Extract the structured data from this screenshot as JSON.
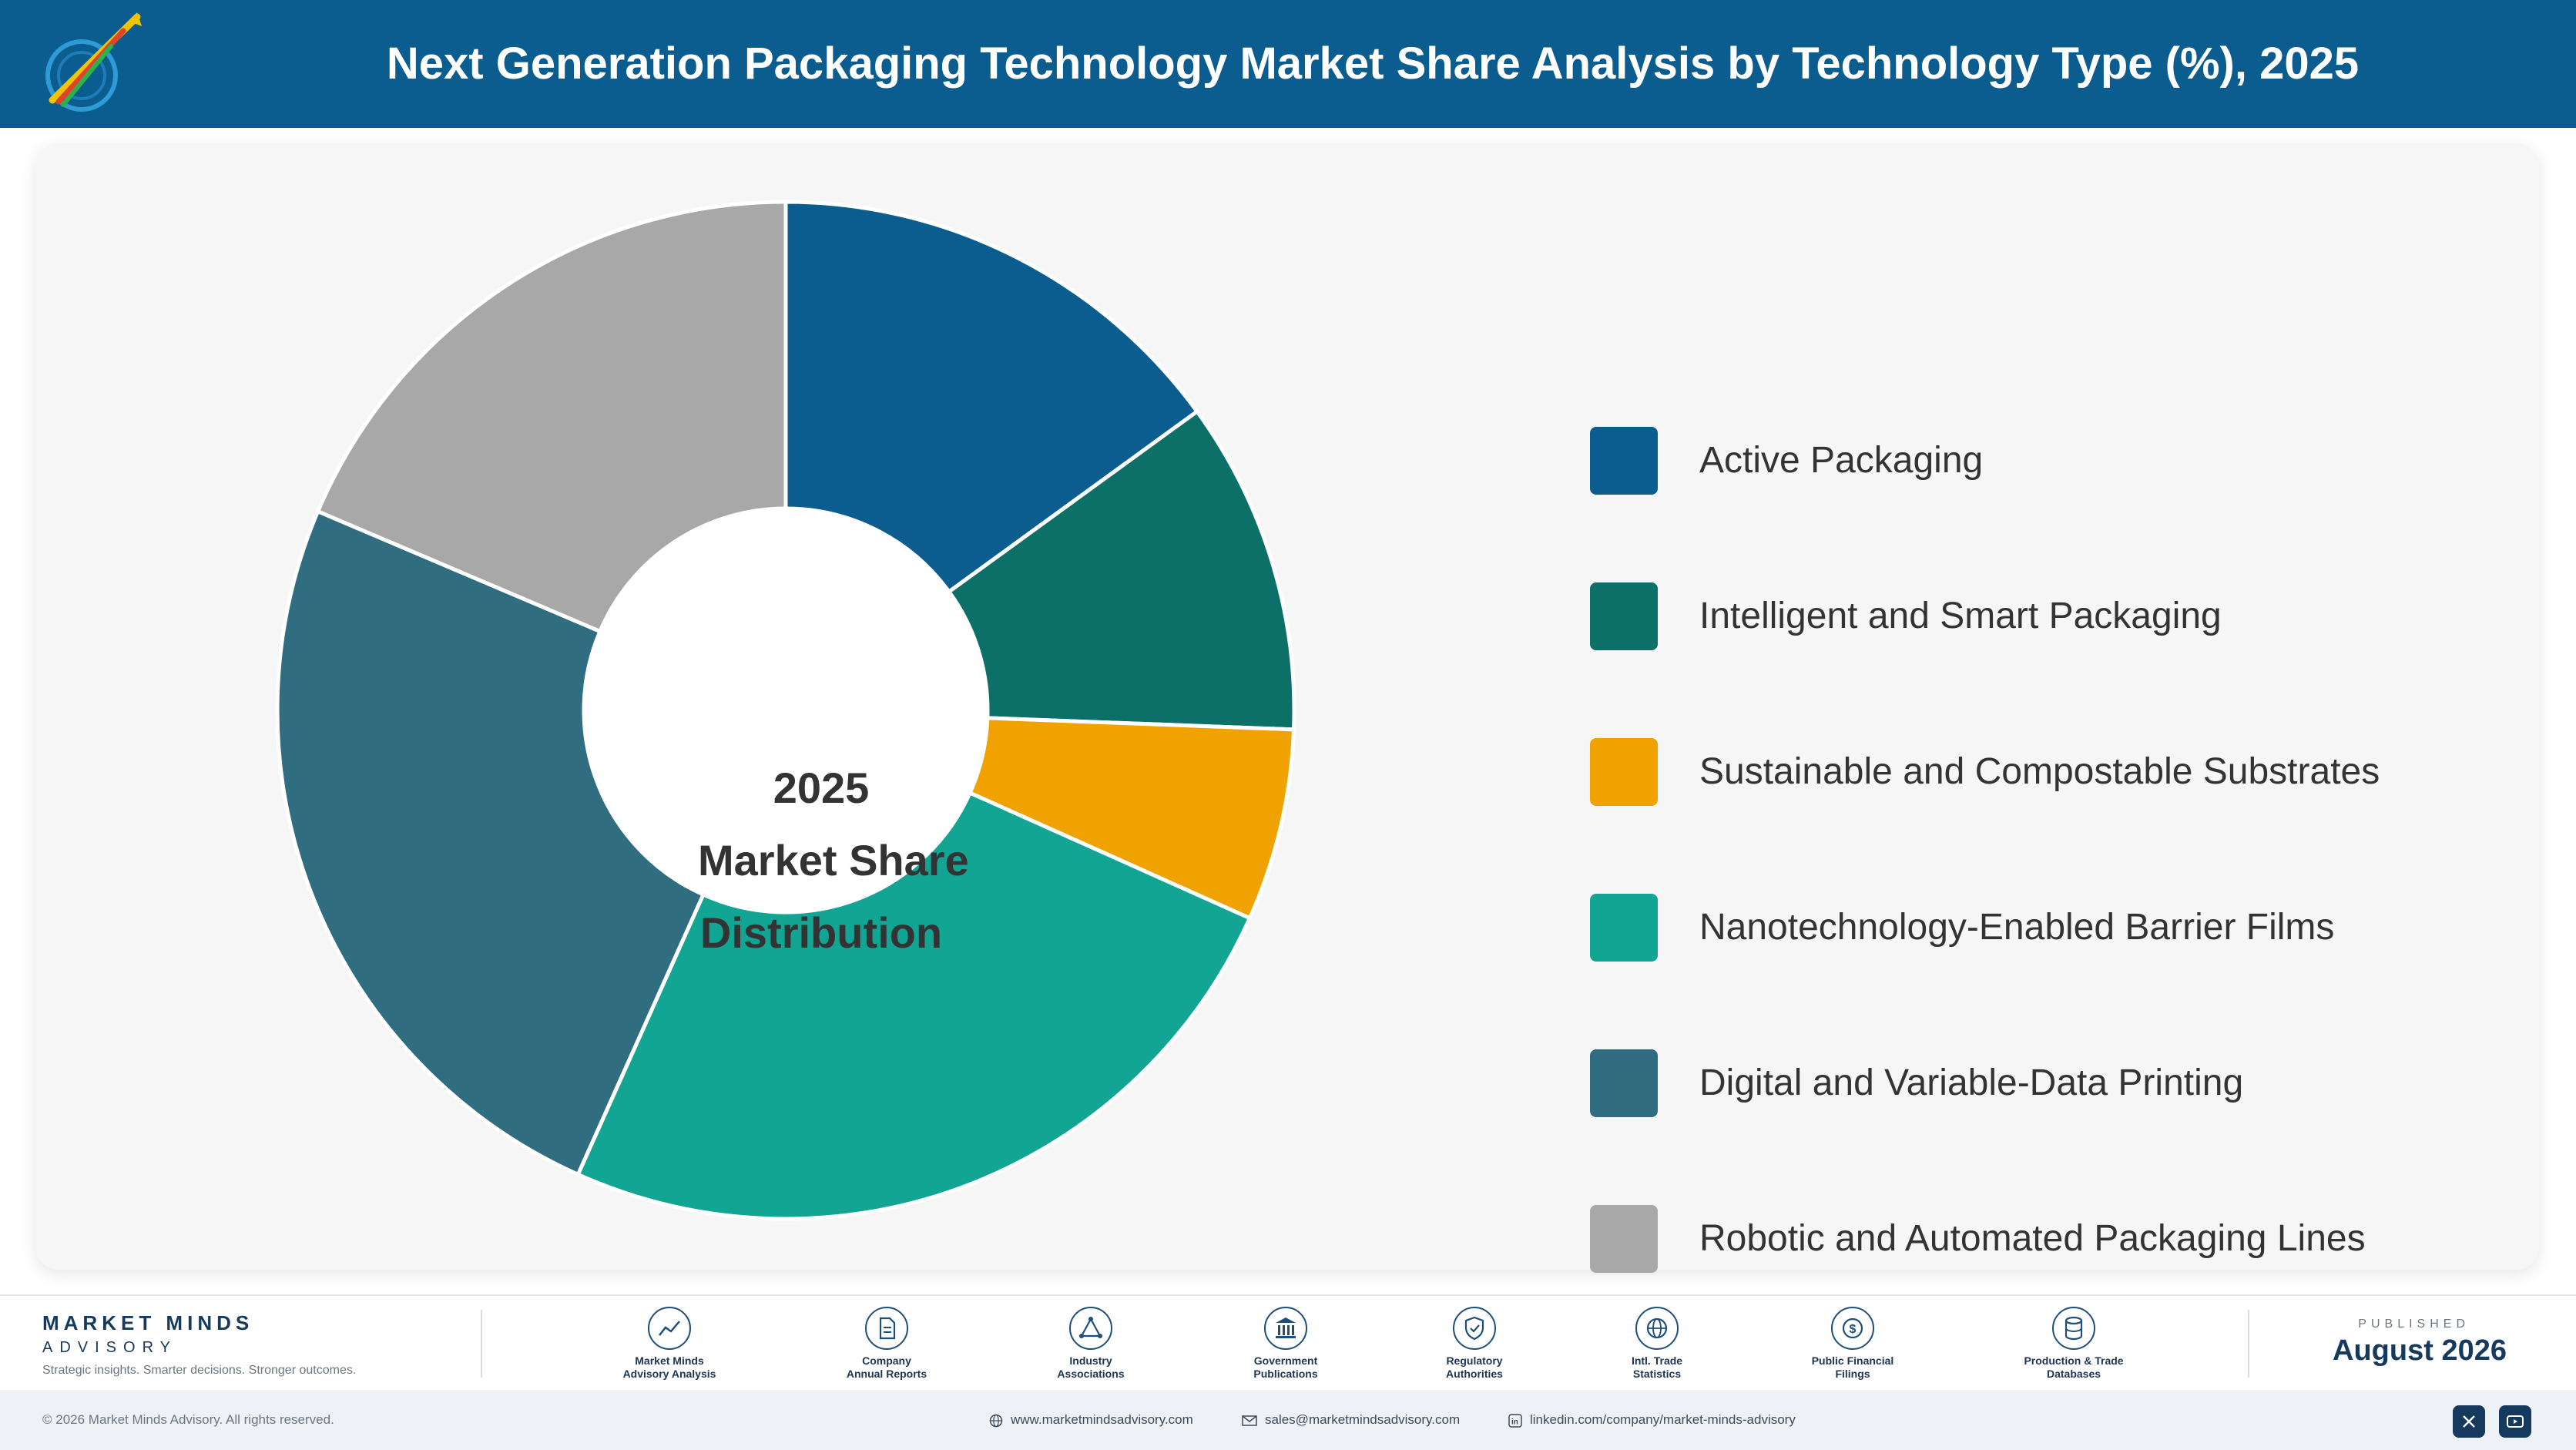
{
  "header": {
    "title": "Next Generation Packaging Technology Market Share Analysis by Technology Type (%), 2025"
  },
  "chart_data": {
    "type": "pie",
    "variant": "donut",
    "center_label": [
      "2025",
      "Market Share",
      "Distribution"
    ],
    "categories": [
      "Active Packaging",
      "Intelligent and Smart Packaging",
      "Sustainable and Compostable Substrates",
      "Nanotechnology-Enabled Barrier Films",
      "Digital and Variable-Data Printing",
      "Robotic and Automated Packaging Lines"
    ],
    "values": [
      15.0,
      10.6,
      6.1,
      25.0,
      24.7,
      18.6
    ],
    "colors": [
      "#0b5c8f",
      "#0d7068",
      "#f0a201",
      "#12a594",
      "#306d80",
      "#a8a8a8"
    ],
    "legend_position": "right"
  },
  "footer": {
    "brand_name": "MARKET MINDS",
    "brand_sub": "ADVISORY",
    "tagline": "Strategic insights. Smarter decisions. Stronger outcomes.",
    "sources": [
      {
        "icon": "trend-chart-icon",
        "line1": "Market Minds",
        "line2": "Advisory Analysis"
      },
      {
        "icon": "document-icon",
        "line1": "Company",
        "line2": "Annual Reports"
      },
      {
        "icon": "network-icon",
        "line1": "Industry",
        "line2": "Associations"
      },
      {
        "icon": "government-building-icon",
        "line1": "Government",
        "line2": "Publications"
      },
      {
        "icon": "shield-check-icon",
        "line1": "Regulatory",
        "line2": "Authorities"
      },
      {
        "icon": "globe-icon",
        "line1": "Intl. Trade",
        "line2": "Statistics"
      },
      {
        "icon": "dollar-coin-icon",
        "line1": "Public Financial",
        "line2": "Filings"
      },
      {
        "icon": "database-icon",
        "line1": "Production & Trade",
        "line2": "Databases"
      }
    ],
    "published_label": "PUBLISHED",
    "published_date": "August 2026"
  },
  "bottom_bar": {
    "copyright": "© 2026 Market Minds Advisory. All rights reserved.",
    "website": "www.marketmindsadvisory.com",
    "email": "sales@marketmindsadvisory.com",
    "linkedin": "linkedin.com/company/market-minds-advisory",
    "social": [
      "x-icon",
      "youtube-icon"
    ]
  }
}
